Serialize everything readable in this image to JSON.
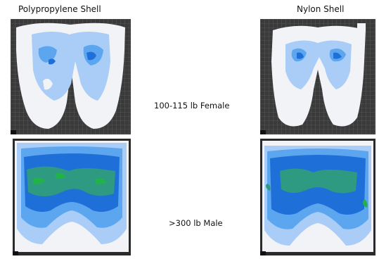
{
  "columns": {
    "left_title": "Polypropylene Shell",
    "right_title": "Nylon Shell"
  },
  "rows": {
    "top_label": "100-115 lb Female",
    "bottom_label": ">300 lb Male"
  },
  "colors": {
    "grid_bg": "#3a3a3a",
    "white_region": "#f1f3f6",
    "light_blue": "#a9cdf6",
    "mid_blue": "#5ca6f0",
    "deep_blue": "#1f6fd8",
    "teal": "#2f9a82",
    "green": "#22b24a"
  }
}
